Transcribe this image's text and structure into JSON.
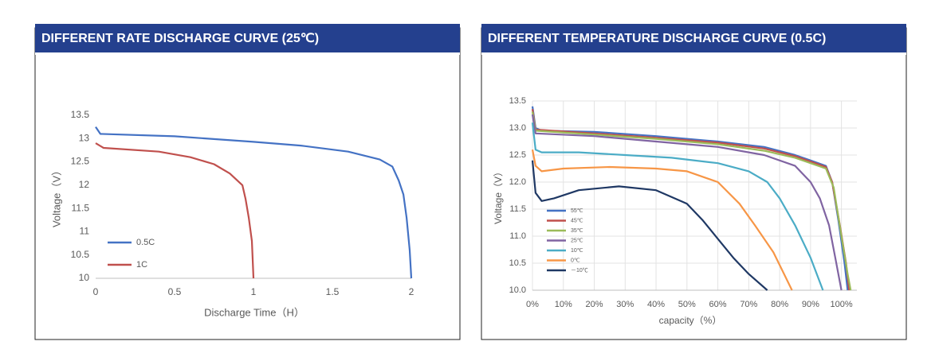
{
  "chart_data": [
    {
      "type": "line",
      "title": "DIFFERENT RATE DISCHARGE CURVE (25℃)",
      "x_label": "Discharge Time（H）",
      "y_label": "Voltage（V）",
      "xlim": [
        0,
        2
      ],
      "xticks": [
        0,
        0.5,
        1,
        1.5,
        2
      ],
      "ylim": [
        10,
        13.5
      ],
      "yticks": [
        10,
        10.5,
        11,
        11.5,
        12,
        12.5,
        13,
        13.5
      ],
      "grid": false,
      "legend": "lower left",
      "series": [
        {
          "name": "0.5C",
          "color": "#4472c4",
          "x": [
            0,
            0.03,
            0.5,
            1.0,
            1.3,
            1.6,
            1.8,
            1.88,
            1.92,
            1.95,
            1.97,
            1.99,
            2.0
          ],
          "values": [
            13.25,
            13.1,
            13.05,
            12.93,
            12.85,
            12.72,
            12.55,
            12.4,
            12.1,
            11.8,
            11.3,
            10.6,
            10.0
          ]
        },
        {
          "name": "1C",
          "color": "#c0504d",
          "x": [
            0,
            0.05,
            0.4,
            0.6,
            0.75,
            0.85,
            0.93,
            0.95,
            0.97,
            0.99,
            1.0
          ],
          "values": [
            12.9,
            12.8,
            12.72,
            12.6,
            12.45,
            12.25,
            12.0,
            11.7,
            11.3,
            10.8,
            10.0
          ]
        }
      ]
    },
    {
      "type": "line",
      "title": "DIFFERENT TEMPERATURE DISCHARGE CURVE (0.5C)",
      "x_label": "capacity（%）",
      "y_label": "Voltage（V）",
      "xlim": [
        0,
        105
      ],
      "xticks": [
        {
          "value": 0,
          "label": "0%"
        },
        {
          "value": 10,
          "label": "10%"
        },
        {
          "value": 20,
          "label": "20%"
        },
        {
          "value": 30,
          "label": "30%"
        },
        {
          "value": 40,
          "label": "40%"
        },
        {
          "value": 50,
          "label": "50%"
        },
        {
          "value": 60,
          "label": "60%"
        },
        {
          "value": 70,
          "label": "70%"
        },
        {
          "value": 80,
          "label": "80%"
        },
        {
          "value": 90,
          "label": "90%"
        },
        {
          "value": 100,
          "label": "100%"
        }
      ],
      "ylim": [
        10,
        13.5
      ],
      "yticks": [
        {
          "value": 10,
          "label": "10.0"
        },
        10.5,
        {
          "value": 11,
          "label": "11.0"
        },
        11.5,
        {
          "value": 12,
          "label": "12.0"
        },
        12.5,
        {
          "value": 13,
          "label": "13.0"
        },
        13.5
      ],
      "grid": true,
      "legend": "left",
      "series": [
        {
          "name": "55℃",
          "color": "#4472c4",
          "x": [
            0,
            1,
            3,
            20,
            40,
            60,
            75,
            85,
            90,
            95,
            97,
            99,
            101,
            102
          ],
          "values": [
            13.4,
            13.0,
            12.95,
            12.93,
            12.85,
            12.75,
            12.65,
            12.5,
            12.4,
            12.3,
            12.0,
            11.3,
            10.5,
            10.0
          ]
        },
        {
          "name": "45℃",
          "color": "#c0504d",
          "x": [
            0,
            1,
            20,
            40,
            60,
            75,
            85,
            90,
            95,
            97,
            99.5,
            101.5,
            102.5
          ],
          "values": [
            13.35,
            12.97,
            12.9,
            12.82,
            12.73,
            12.62,
            12.48,
            12.38,
            12.28,
            12.0,
            11.2,
            10.5,
            10.0
          ]
        },
        {
          "name": "35℃",
          "color": "#9bbb59",
          "x": [
            0,
            1,
            20,
            40,
            60,
            75,
            85,
            90,
            95,
            97.5,
            100,
            102,
            103
          ],
          "values": [
            13.3,
            12.95,
            12.88,
            12.8,
            12.7,
            12.58,
            12.45,
            12.35,
            12.25,
            11.9,
            11.0,
            10.3,
            10.0
          ]
        },
        {
          "name": "25℃",
          "color": "#8064a2",
          "x": [
            0,
            1,
            20,
            40,
            60,
            75,
            85,
            90,
            93,
            96,
            98,
            100
          ],
          "values": [
            13.25,
            12.9,
            12.85,
            12.75,
            12.65,
            12.5,
            12.3,
            12.0,
            11.7,
            11.2,
            10.6,
            10.0
          ]
        },
        {
          "name": "10℃",
          "color": "#4bacc6",
          "x": [
            0,
            1,
            3,
            15,
            30,
            45,
            60,
            70,
            76,
            80,
            85,
            90,
            94
          ],
          "values": [
            13.1,
            12.6,
            12.55,
            12.55,
            12.5,
            12.45,
            12.35,
            12.2,
            12.0,
            11.7,
            11.2,
            10.6,
            10.0
          ]
        },
        {
          "name": "0℃",
          "color": "#f79646",
          "x": [
            0,
            1,
            3,
            10,
            25,
            40,
            50,
            60,
            67,
            72,
            78,
            84
          ],
          "values": [
            12.6,
            12.3,
            12.2,
            12.25,
            12.28,
            12.25,
            12.2,
            12.0,
            11.6,
            11.2,
            10.7,
            10.0
          ]
        },
        {
          "name": "－10℃",
          "color": "#1f3864",
          "x": [
            0,
            1,
            3,
            7,
            15,
            28,
            40,
            50,
            55,
            60,
            65,
            70,
            76
          ],
          "values": [
            12.4,
            11.8,
            11.65,
            11.7,
            11.85,
            11.92,
            11.85,
            11.6,
            11.3,
            10.95,
            10.6,
            10.3,
            10.0
          ]
        }
      ]
    }
  ]
}
